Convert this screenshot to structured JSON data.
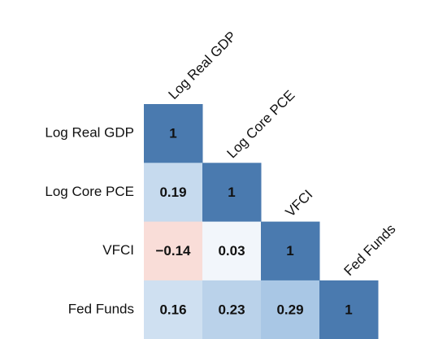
{
  "chart_data": {
    "type": "heatmap",
    "categories": [
      "Log Real GDP",
      "Log Core PCE",
      "VFCI",
      "Fed Funds"
    ],
    "values": [
      [
        1,
        null,
        null,
        null
      ],
      [
        0.19,
        1,
        null,
        null
      ],
      [
        -0.14,
        0.03,
        1,
        null
      ],
      [
        0.16,
        0.23,
        0.29,
        1
      ]
    ],
    "value_labels": [
      [
        "1",
        null,
        null,
        null
      ],
      [
        "0.19",
        "1",
        null,
        null
      ],
      [
        "−0.14",
        "0.03",
        "1",
        null
      ],
      [
        "0.16",
        "0.23",
        "0.29",
        "1"
      ]
    ],
    "colors": [
      [
        "#4a7aaf",
        null,
        null,
        null
      ],
      [
        "#c6daee",
        "#4a7aaf",
        null,
        null
      ],
      [
        "#f9ddd8",
        "#f2f6fb",
        "#4a7aaf",
        null
      ],
      [
        "#cfe0f1",
        "#bad2ea",
        "#a9c7e5",
        "#4a7aaf"
      ]
    ]
  }
}
